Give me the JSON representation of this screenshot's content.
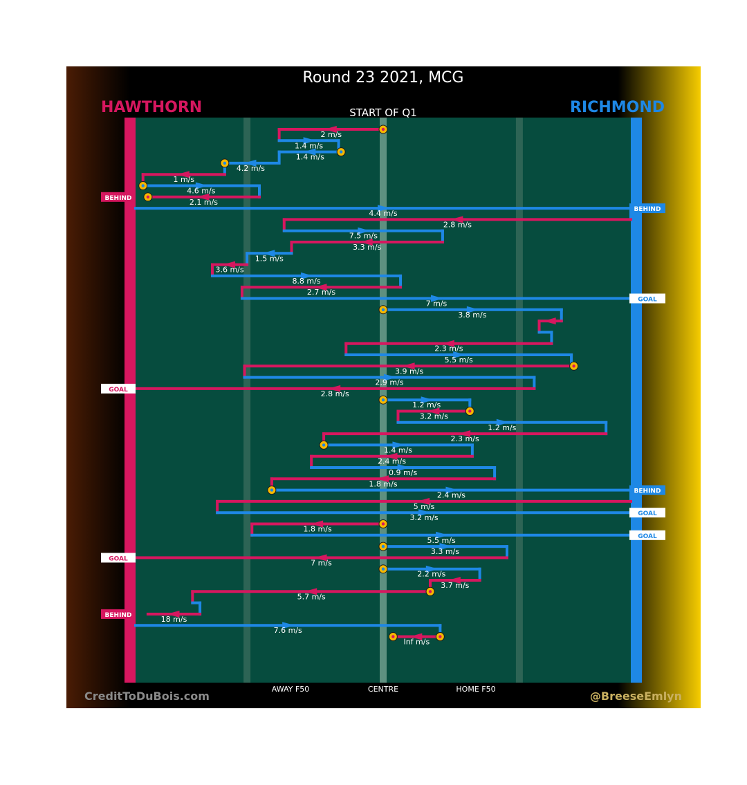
{
  "title": "Round 23 2021, MCG",
  "subtitle": "START OF Q1",
  "teams": {
    "left": {
      "name": "HAWTHORN",
      "color": "#d6175f"
    },
    "right": {
      "name": "RICHMOND",
      "color": "#1e88e5"
    }
  },
  "colors": {
    "field": "#064c3e",
    "marker": "#f5b800"
  },
  "axis_labels": {
    "away": "AWAY F50",
    "centre": "CENTRE",
    "home": "HOME F50"
  },
  "credits": {
    "left": "CreditToDuBois.com",
    "right": "@BreeseEmlyn"
  },
  "chart_data": {
    "type": "line",
    "x_axis": {
      "min": -1,
      "max": 1,
      "ticks": [
        {
          "x": -0.55,
          "label": "AWAY F50"
        },
        {
          "x": 0,
          "label": "CENTRE"
        },
        {
          "x": 0.55,
          "label": "HOME F50"
        }
      ]
    },
    "chains": [
      {
        "team": "HAWTHORN",
        "x0": 0,
        "x1": -0.42,
        "speed": "2 m/s",
        "start_marker": true
      },
      {
        "team": "RICHMOND",
        "x0": -0.42,
        "x1": -0.18,
        "speed": "1.4 m/s"
      },
      {
        "team": "RICHMOND",
        "x0": -0.17,
        "x1": -0.42,
        "speed": "1.4 m/s",
        "start_marker": true
      },
      {
        "team": "RICHMOND",
        "x0": -0.43,
        "x1": -0.64,
        "speed": "4.2 m/s",
        "end_marker": true
      },
      {
        "team": "HAWTHORN",
        "x0": -0.64,
        "x1": -0.97,
        "speed": "1 m/s"
      },
      {
        "team": "RICHMOND",
        "x0": -0.97,
        "x1": -0.5,
        "speed": "4.6 m/s",
        "start_marker": true
      },
      {
        "team": "HAWTHORN",
        "x0": -0.5,
        "x1": -0.95,
        "speed": "2.1 m/s",
        "end_marker": true,
        "result": "BEHIND"
      },
      {
        "team": "RICHMOND",
        "x0": -1,
        "x1": 1,
        "speed": "4.4 m/s",
        "result": "BEHIND"
      },
      {
        "team": "HAWTHORN",
        "x0": 1,
        "x1": -0.4,
        "speed": "2.8 m/s"
      },
      {
        "team": "RICHMOND",
        "x0": -0.4,
        "x1": 0.24,
        "speed": "7.5 m/s"
      },
      {
        "team": "HAWTHORN",
        "x0": 0.24,
        "x1": -0.37,
        "speed": "3.3 m/s"
      },
      {
        "team": "RICHMOND",
        "x0": -0.37,
        "x1": -0.55,
        "speed": "1.5 m/s"
      },
      {
        "team": "HAWTHORN",
        "x0": -0.55,
        "x1": -0.69,
        "speed": "3.6 m/s"
      },
      {
        "team": "RICHMOND",
        "x0": -0.69,
        "x1": 0.07,
        "speed": "8.8 m/s"
      },
      {
        "team": "HAWTHORN",
        "x0": 0.07,
        "x1": -0.57,
        "speed": "2.7 m/s"
      },
      {
        "team": "RICHMOND",
        "x0": -0.57,
        "x1": 1,
        "speed": "7 m/s",
        "result": "GOAL"
      },
      {
        "team": "RICHMOND",
        "x0": 0,
        "x1": 0.72,
        "speed": "3.8 m/s",
        "start_marker": true
      },
      {
        "team": "HAWTHORN",
        "x0": 0.72,
        "x1": 0.63,
        "speed": ""
      },
      {
        "team": "RICHMOND",
        "x0": 0.63,
        "x1": 0.68,
        "speed": ""
      },
      {
        "team": "HAWTHORN",
        "x0": 0.68,
        "x1": -0.15,
        "speed": "2.3 m/s"
      },
      {
        "team": "RICHMOND",
        "x0": -0.15,
        "x1": 0.76,
        "speed": "5.5 m/s"
      },
      {
        "team": "HAWTHORN",
        "x0": 0.77,
        "x1": -0.56,
        "speed": "3.9 m/s",
        "start_marker": true
      },
      {
        "team": "RICHMOND",
        "x0": -0.56,
        "x1": 0.61,
        "speed": "2.9 m/s"
      },
      {
        "team": "HAWTHORN",
        "x0": 0.61,
        "x1": -1,
        "speed": "2.8 m/s",
        "result": "GOAL"
      },
      {
        "team": "RICHMOND",
        "x0": 0,
        "x1": 0.35,
        "speed": "1.2 m/s",
        "start_marker": true
      },
      {
        "team": "HAWTHORN",
        "x0": 0.35,
        "x1": 0.06,
        "speed": "3.2 m/s",
        "start_marker": true
      },
      {
        "team": "RICHMOND",
        "x0": 0.06,
        "x1": 0.9,
        "speed": "1.2 m/s"
      },
      {
        "team": "HAWTHORN",
        "x0": 0.9,
        "x1": -0.24,
        "speed": "2.3 m/s"
      },
      {
        "team": "RICHMOND",
        "x0": -0.24,
        "x1": 0.36,
        "speed": "1.4 m/s",
        "start_marker": true
      },
      {
        "team": "HAWTHORN",
        "x0": 0.36,
        "x1": -0.29,
        "speed": "2.4 m/s"
      },
      {
        "team": "RICHMOND",
        "x0": -0.29,
        "x1": 0.45,
        "speed": "0.9 m/s"
      },
      {
        "team": "HAWTHORN",
        "x0": 0.45,
        "x1": -0.45,
        "speed": "1.8 m/s"
      },
      {
        "team": "RICHMOND",
        "x0": -0.45,
        "x1": 1,
        "speed": "2.4 m/s",
        "start_marker": true,
        "result": "BEHIND"
      },
      {
        "team": "HAWTHORN",
        "x0": 1,
        "x1": -0.67,
        "speed": "5 m/s"
      },
      {
        "team": "RICHMOND",
        "x0": -0.67,
        "x1": 1,
        "speed": "3.2 m/s",
        "result": "GOAL"
      },
      {
        "team": "HAWTHORN",
        "x0": 0,
        "x1": -0.53,
        "speed": "1.8 m/s",
        "start_marker": true
      },
      {
        "team": "RICHMOND",
        "x0": -0.53,
        "x1": 1,
        "speed": "5.5 m/s",
        "result": "GOAL"
      },
      {
        "team": "RICHMOND",
        "x0": 0,
        "x1": 0.5,
        "speed": "3.3 m/s",
        "start_marker": true
      },
      {
        "team": "HAWTHORN",
        "x0": 0.5,
        "x1": -1,
        "speed": "7 m/s",
        "result": "GOAL"
      },
      {
        "team": "RICHMOND",
        "x0": 0,
        "x1": 0.39,
        "speed": "2.2 m/s",
        "start_marker": true
      },
      {
        "team": "HAWTHORN",
        "x0": 0.39,
        "x1": 0.19,
        "speed": "3.7 m/s"
      },
      {
        "team": "HAWTHORN",
        "x0": 0.19,
        "x1": -0.77,
        "speed": "5.7 m/s",
        "start_marker": true
      },
      {
        "team": "RICHMOND",
        "x0": -0.77,
        "x1": -0.74,
        "speed": ""
      },
      {
        "team": "HAWTHORN",
        "x0": -0.74,
        "x1": -0.95,
        "speed": "18 m/s",
        "result": "BEHIND"
      },
      {
        "team": "RICHMOND",
        "x0": -1,
        "x1": 0.23,
        "speed": "7.6 m/s"
      },
      {
        "team": "HAWTHORN",
        "x0": 0.23,
        "x1": 0.04,
        "speed": "Inf m/s",
        "start_marker": true,
        "end_marker": true
      }
    ]
  }
}
